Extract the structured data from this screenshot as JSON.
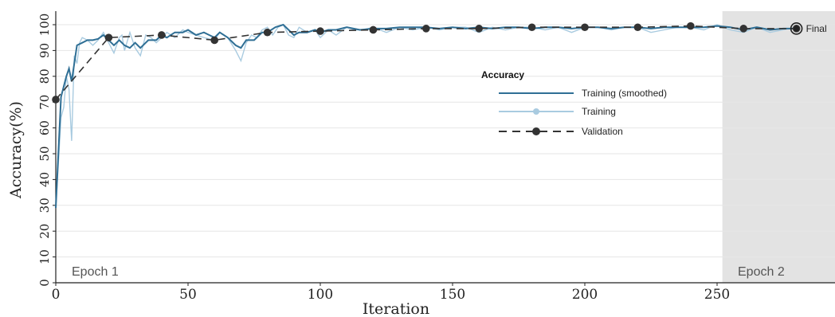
{
  "chart_data": {
    "type": "line",
    "ylabel": "Accuracy(%)",
    "xlabel": "Iteration",
    "xlim": [
      0,
      296
    ],
    "ylim": [
      0,
      103
    ],
    "xticks": [
      0,
      50,
      100,
      150,
      200,
      250
    ],
    "yticks": [
      0,
      10,
      20,
      30,
      40,
      50,
      60,
      70,
      80,
      90,
      100
    ],
    "grid": true,
    "legend": {
      "title": "Accuracy",
      "position": "center-right",
      "entries": [
        {
          "label": "Training (smoothed)",
          "series": "training_smoothed"
        },
        {
          "label": "Training",
          "series": "training"
        },
        {
          "label": "Validation",
          "series": "validation"
        }
      ]
    },
    "epochs": [
      {
        "label": "Epoch 1",
        "start": 0,
        "end": 252
      },
      {
        "label": "Epoch 2",
        "start": 252,
        "end": 296
      }
    ],
    "final_annotation": {
      "label": "Final",
      "x": 280,
      "y": 98.5
    },
    "colors": {
      "training_smoothed": "#2f6f95",
      "training": "#a9cbe0",
      "validation": "#333333",
      "epoch2_shade": "#e3e3e3",
      "grid": "#e6e6e6"
    },
    "series": {
      "training_smoothed": {
        "name": "Training (smoothed)",
        "x": [
          0,
          2,
          4,
          5,
          6,
          8,
          10,
          12,
          14,
          16,
          18,
          20,
          22,
          24,
          26,
          28,
          30,
          32,
          35,
          38,
          40,
          42,
          45,
          48,
          50,
          53,
          56,
          58,
          60,
          62,
          65,
          68,
          70,
          72,
          75,
          78,
          80,
          83,
          86,
          88,
          90,
          92,
          95,
          98,
          100,
          103,
          106,
          110,
          115,
          120,
          125,
          130,
          135,
          140,
          145,
          150,
          155,
          160,
          165,
          170,
          175,
          180,
          185,
          190,
          195,
          200,
          205,
          210,
          215,
          220,
          225,
          230,
          235,
          240,
          245,
          250,
          255,
          260,
          265,
          270,
          275,
          280
        ],
        "y": [
          29,
          72,
          80,
          83,
          78,
          92,
          93,
          94,
          94,
          94.5,
          96,
          94,
          92,
          94,
          92,
          91,
          93,
          91,
          94,
          94,
          96,
          95,
          97,
          97,
          98,
          96,
          97,
          96,
          95,
          97,
          95,
          92,
          91,
          94,
          94,
          97,
          97,
          99,
          100,
          98,
          96,
          97,
          97,
          98,
          97,
          98,
          98,
          99,
          98,
          98.5,
          98.5,
          99,
          99,
          99,
          98.5,
          99,
          98.5,
          99,
          98.5,
          99,
          99,
          98.5,
          99,
          99,
          98.5,
          99,
          99,
          98.5,
          99,
          99,
          98.5,
          99,
          99,
          99,
          99,
          99.5,
          99,
          98,
          99,
          98,
          98.5,
          98.5
        ]
      },
      "training": {
        "name": "Training",
        "x": [
          0,
          2,
          3,
          4,
          5,
          6,
          7,
          8,
          9,
          10,
          12,
          14,
          16,
          18,
          20,
          22,
          24,
          25,
          26,
          28,
          30,
          32,
          34,
          36,
          38,
          40,
          42,
          45,
          48,
          50,
          53,
          56,
          60,
          62,
          65,
          68,
          70,
          72,
          74,
          76,
          78,
          80,
          82,
          84,
          86,
          88,
          90,
          92,
          95,
          98,
          100,
          103,
          106,
          110,
          113,
          116,
          120,
          125,
          130,
          135,
          140,
          145,
          150,
          155,
          160,
          165,
          170,
          175,
          180,
          185,
          190,
          195,
          200,
          205,
          210,
          215,
          220,
          225,
          230,
          235,
          240,
          245,
          250,
          255,
          260,
          265,
          270,
          275,
          280
        ],
        "y": [
          29,
          64,
          68,
          80,
          75,
          55,
          88,
          85,
          93,
          95,
          94,
          92,
          94,
          97,
          93,
          89,
          95,
          96,
          90,
          97,
          91,
          88,
          96,
          95,
          93,
          95,
          97,
          95,
          98,
          97,
          96,
          95,
          94,
          97,
          95,
          90,
          86,
          93,
          96,
          95,
          98,
          99,
          96,
          99,
          100,
          96,
          95,
          99,
          97,
          98,
          95,
          98,
          96,
          99,
          98,
          98,
          99,
          97,
          99,
          98,
          99,
          98,
          99,
          99,
          97,
          99,
          98,
          99,
          99,
          98,
          99,
          97,
          99,
          99,
          98,
          99,
          99,
          97,
          98,
          99,
          99,
          98,
          100,
          98,
          97,
          99,
          97,
          98,
          99
        ]
      },
      "validation": {
        "name": "Validation",
        "x": [
          0,
          20,
          40,
          60,
          80,
          100,
          120,
          140,
          160,
          180,
          200,
          220,
          240,
          260,
          280
        ],
        "y": [
          71,
          95,
          96,
          94,
          97,
          97.5,
          98,
          98.5,
          98.5,
          99,
          99,
          99,
          99.5,
          98.5,
          98.5
        ]
      }
    }
  }
}
